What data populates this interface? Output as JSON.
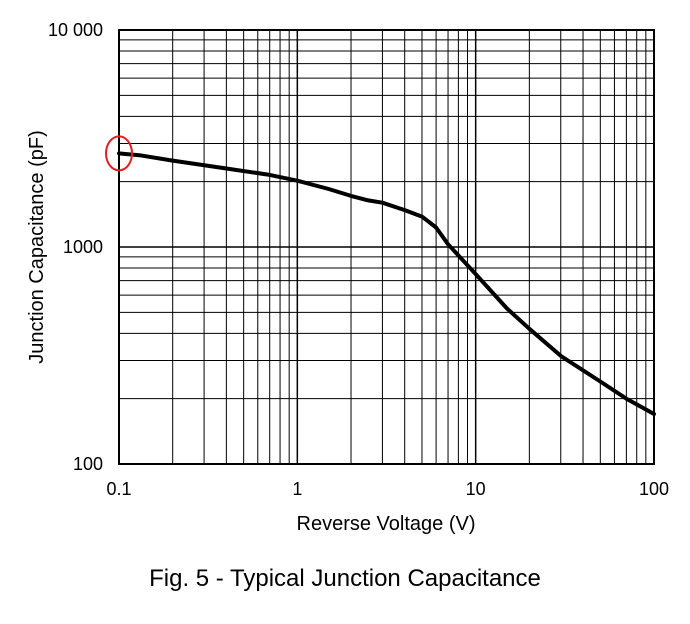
{
  "chart_data": {
    "type": "line",
    "caption": "Fig. 5 - Typical Junction Capacitance",
    "xlabel": "Reverse Voltage (V)",
    "ylabel": "Junction Capacitance (pF)",
    "x_scale": "log",
    "y_scale": "log",
    "xlim": [
      0.1,
      100
    ],
    "ylim": [
      100,
      10000
    ],
    "grid": true,
    "x_ticks": [
      {
        "value": 0.1,
        "label": "0.1"
      },
      {
        "value": 1,
        "label": "1"
      },
      {
        "value": 10,
        "label": "10"
      },
      {
        "value": 100,
        "label": "100"
      }
    ],
    "y_ticks": [
      {
        "value": 100,
        "label": "100"
      },
      {
        "value": 1000,
        "label": "1000"
      },
      {
        "value": 10000,
        "label": "10 000"
      }
    ],
    "series": [
      {
        "color": "#000000",
        "x": [
          0.1,
          0.13,
          0.2,
          0.4,
          0.7,
          1,
          1.5,
          2,
          2.5,
          3,
          4,
          5,
          6,
          7,
          10,
          15,
          20,
          30,
          50,
          70,
          100
        ],
        "y": [
          2700,
          2650,
          2500,
          2300,
          2150,
          2020,
          1850,
          1720,
          1640,
          1600,
          1480,
          1380,
          1230,
          1030,
          750,
          520,
          420,
          315,
          240,
          200,
          170
        ]
      }
    ],
    "annotation": {
      "shape": "circle",
      "color": "#e02020",
      "x": 0.1,
      "y": 2700
    }
  }
}
